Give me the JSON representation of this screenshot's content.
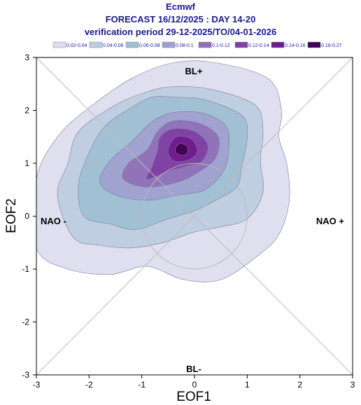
{
  "chart_data": {
    "type": "contour",
    "title_lines": [
      "Ecmwf",
      "FORECAST 16/12/2025 : DAY 14-20",
      "verification period 29-12-2025/TO/04-01-2026"
    ],
    "xlabel": "EOF1",
    "ylabel": "EOF2",
    "xlim": [
      -3,
      3
    ],
    "ylim": [
      -3,
      3
    ],
    "x_ticks": [
      "-3",
      "-2",
      "-1",
      "0",
      "1",
      "2",
      "3"
    ],
    "y_ticks": [
      "3",
      "2",
      "1",
      "0",
      "-1",
      "-2",
      "-3"
    ],
    "region_labels": {
      "top": "BL+",
      "bottom": "BL-",
      "left": "NAO -",
      "right": "NAO +"
    },
    "legend": [
      {
        "label": "0.02-0.04",
        "color": "#dcdcee"
      },
      {
        "label": "0.04-0.06",
        "color": "#bccde0"
      },
      {
        "label": "0.06-0.08",
        "color": "#9fbfd3"
      },
      {
        "label": "0.08-0.1",
        "color": "#9f9fcf"
      },
      {
        "label": "0.1-0.12",
        "color": "#8f6fb6"
      },
      {
        "label": "0.12-0.14",
        "color": "#7f3fa3"
      },
      {
        "label": "0.14-0.16",
        "color": "#6f1a8c"
      },
      {
        "label": "0.16-0.27",
        "color": "#3f0050"
      }
    ],
    "density_max_location": {
      "x": -0.25,
      "y": 1.25
    },
    "reference_circle_radius": 1
  }
}
